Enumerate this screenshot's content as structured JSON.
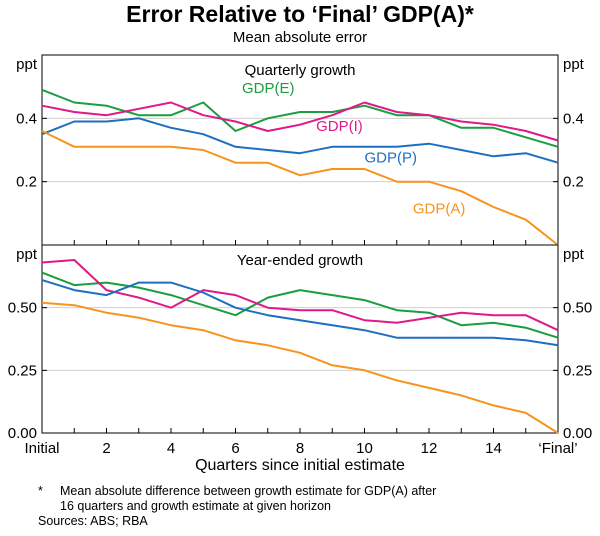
{
  "chart_data": {
    "type": "line",
    "title": "Error Relative to ‘Final’ GDP(A)*",
    "subtitle": "Mean absolute error",
    "xlabel": "Quarters since initial estimate",
    "x": [
      0,
      1,
      2,
      3,
      4,
      5,
      6,
      7,
      8,
      9,
      10,
      11,
      12,
      13,
      14,
      15,
      16
    ],
    "xticks": [
      {
        "x": 0,
        "label": "Initial"
      },
      {
        "x": 2,
        "label": "2"
      },
      {
        "x": 4,
        "label": "4"
      },
      {
        "x": 6,
        "label": "6"
      },
      {
        "x": 8,
        "label": "8"
      },
      {
        "x": 10,
        "label": "10"
      },
      {
        "x": 12,
        "label": "12"
      },
      {
        "x": 14,
        "label": "14"
      },
      {
        "x": 16,
        "label": "‘Final’"
      }
    ],
    "colors": {
      "GDP(E)": "#1a9e3f",
      "GDP(I)": "#e0198a",
      "GDP(P)": "#1f6fc0",
      "GDP(A)": "#f7941d"
    },
    "panels": [
      {
        "title": "Quarterly growth",
        "unit": "ppt",
        "ylim": [
          0,
          0.6
        ],
        "yticks": [
          {
            "v": 0.2,
            "label": "0.2"
          },
          {
            "v": 0.4,
            "label": "0.4"
          }
        ],
        "series": [
          {
            "name": "GDP(E)",
            "values": [
              0.49,
              0.45,
              0.44,
              0.41,
              0.41,
              0.45,
              0.36,
              0.4,
              0.42,
              0.42,
              0.44,
              0.41,
              0.41,
              0.37,
              0.37,
              0.34,
              0.31
            ]
          },
          {
            "name": "GDP(I)",
            "values": [
              0.44,
              0.42,
              0.41,
              0.43,
              0.45,
              0.41,
              0.39,
              0.36,
              0.38,
              0.41,
              0.45,
              0.42,
              0.41,
              0.39,
              0.38,
              0.36,
              0.33
            ]
          },
          {
            "name": "GDP(P)",
            "values": [
              0.35,
              0.39,
              0.39,
              0.4,
              0.37,
              0.35,
              0.31,
              0.3,
              0.29,
              0.31,
              0.31,
              0.31,
              0.32,
              0.3,
              0.28,
              0.29,
              0.26
            ]
          },
          {
            "name": "GDP(A)",
            "values": [
              0.36,
              0.31,
              0.31,
              0.31,
              0.31,
              0.3,
              0.26,
              0.26,
              0.22,
              0.24,
              0.24,
              0.2,
              0.2,
              0.17,
              0.12,
              0.08,
              0.0
            ]
          }
        ],
        "labels": [
          {
            "series": "GDP(E)",
            "text": "GDP(E)",
            "x": 6.2,
            "y": 0.48
          },
          {
            "series": "GDP(I)",
            "text": "GDP(I)",
            "x": 8.5,
            "y": 0.36
          },
          {
            "series": "GDP(P)",
            "text": "GDP(P)",
            "x": 10.0,
            "y": 0.26
          },
          {
            "series": "GDP(A)",
            "text": "GDP(A)",
            "x": 11.5,
            "y": 0.1
          }
        ]
      },
      {
        "title": "Year-ended growth",
        "unit": "ppt",
        "ylim": [
          0,
          0.75
        ],
        "yticks": [
          {
            "v": 0.0,
            "label": "0.00"
          },
          {
            "v": 0.25,
            "label": "0.25"
          },
          {
            "v": 0.5,
            "label": "0.50"
          }
        ],
        "series": [
          {
            "name": "GDP(E)",
            "values": [
              0.64,
              0.59,
              0.6,
              0.58,
              0.55,
              0.51,
              0.47,
              0.54,
              0.57,
              0.55,
              0.53,
              0.49,
              0.48,
              0.43,
              0.44,
              0.42,
              0.38
            ]
          },
          {
            "name": "GDP(I)",
            "values": [
              0.68,
              0.69,
              0.57,
              0.54,
              0.5,
              0.57,
              0.55,
              0.5,
              0.49,
              0.49,
              0.45,
              0.44,
              0.46,
              0.48,
              0.47,
              0.47,
              0.41
            ]
          },
          {
            "name": "GDP(P)",
            "values": [
              0.61,
              0.57,
              0.55,
              0.6,
              0.6,
              0.56,
              0.5,
              0.47,
              0.45,
              0.43,
              0.41,
              0.38,
              0.38,
              0.38,
              0.38,
              0.37,
              0.35
            ]
          },
          {
            "name": "GDP(A)",
            "values": [
              0.52,
              0.51,
              0.48,
              0.46,
              0.43,
              0.41,
              0.37,
              0.35,
              0.32,
              0.27,
              0.25,
              0.21,
              0.18,
              0.15,
              0.11,
              0.08,
              0.0
            ]
          }
        ]
      }
    ]
  },
  "notes": {
    "footnote_mark": "*",
    "footnote_line1": "Mean absolute difference between growth estimate for GDP(A) after",
    "footnote_line2": "16 quarters and growth estimate at given horizon",
    "sources": "Sources: ABS; RBA"
  }
}
